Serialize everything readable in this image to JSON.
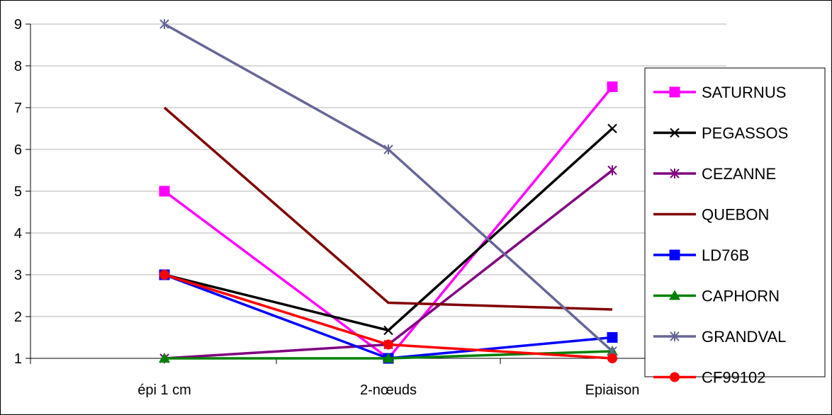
{
  "chart_data": {
    "type": "line",
    "title": "",
    "xlabel": "",
    "ylabel": "",
    "categories": [
      "épi 1 cm",
      "2-nœuds",
      "Epiaison"
    ],
    "ylim": [
      1,
      9
    ],
    "yticks": [
      "1",
      "2",
      "3",
      "4",
      "5",
      "6",
      "7",
      "8",
      "9"
    ],
    "grid": "horizontal",
    "legend_position": "right",
    "series": [
      {
        "name": "SATURNUS",
        "color": "#ff00ff",
        "marker": "square",
        "values": [
          5,
          1,
          7.5
        ]
      },
      {
        "name": "PEGASSOS",
        "color": "#000000",
        "marker": "x",
        "values": [
          3,
          1.67,
          6.5
        ]
      },
      {
        "name": "CEZANNE",
        "color": "#800080",
        "marker": "asterisk",
        "values": [
          1,
          1.33,
          5.5
        ]
      },
      {
        "name": "QUEBON",
        "color": "#800000",
        "marker": "none",
        "values": [
          7,
          2.33,
          2.17
        ]
      },
      {
        "name": "LD76B",
        "color": "#0000ff",
        "marker": "square",
        "values": [
          3,
          1,
          1.5
        ]
      },
      {
        "name": "CAPHORN",
        "color": "#008000",
        "marker": "triangle",
        "values": [
          1,
          1,
          1.17
        ]
      },
      {
        "name": "GRANDVAL",
        "color": "#666699",
        "marker": "asterisk",
        "values": [
          9,
          6,
          1.17
        ]
      },
      {
        "name": "CF99102",
        "color": "#ff0000",
        "marker": "circle",
        "values": [
          3,
          1.33,
          1
        ]
      }
    ]
  }
}
